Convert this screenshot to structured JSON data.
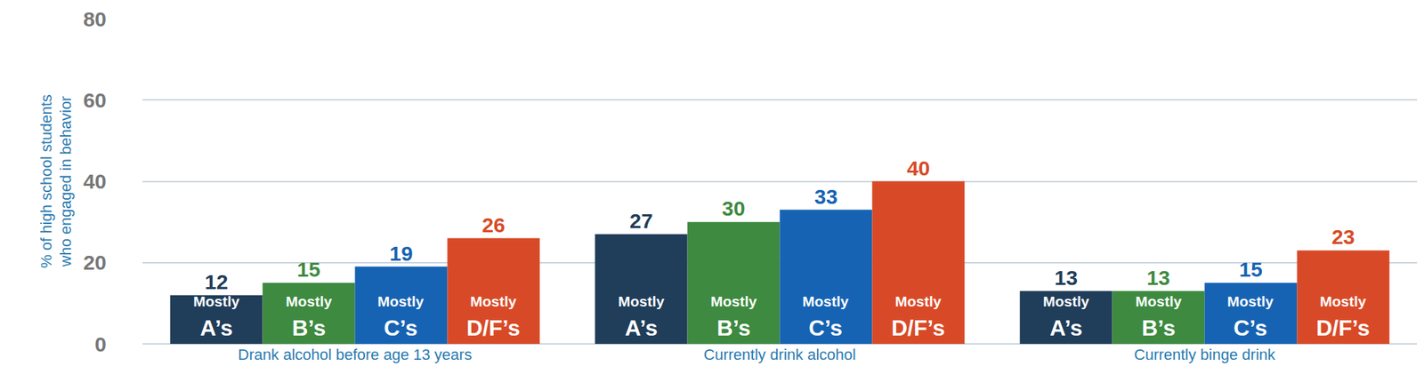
{
  "chart_data": {
    "type": "bar",
    "categories": [
      "Drank alcohol before age 13 years",
      "Currently drink alcohol",
      "Currently binge drink"
    ],
    "series": [
      {
        "name": "Mostly A’s",
        "color": "#203d5a",
        "values": [
          12,
          27,
          13
        ]
      },
      {
        "name": "Mostly B’s",
        "color": "#3d8a40",
        "values": [
          15,
          30,
          13
        ]
      },
      {
        "name": "Mostly C’s",
        "color": "#1763b3",
        "values": [
          19,
          33,
          15
        ]
      },
      {
        "name": "Mostly D/F’s",
        "color": "#d84a27",
        "values": [
          26,
          40,
          23
        ]
      }
    ],
    "ylabel": "% of high school students who engaged in behavior",
    "ylim": [
      0,
      80
    ],
    "yticks": [
      0,
      20,
      40,
      60,
      80
    ],
    "grid": true,
    "data_labels": true
  }
}
